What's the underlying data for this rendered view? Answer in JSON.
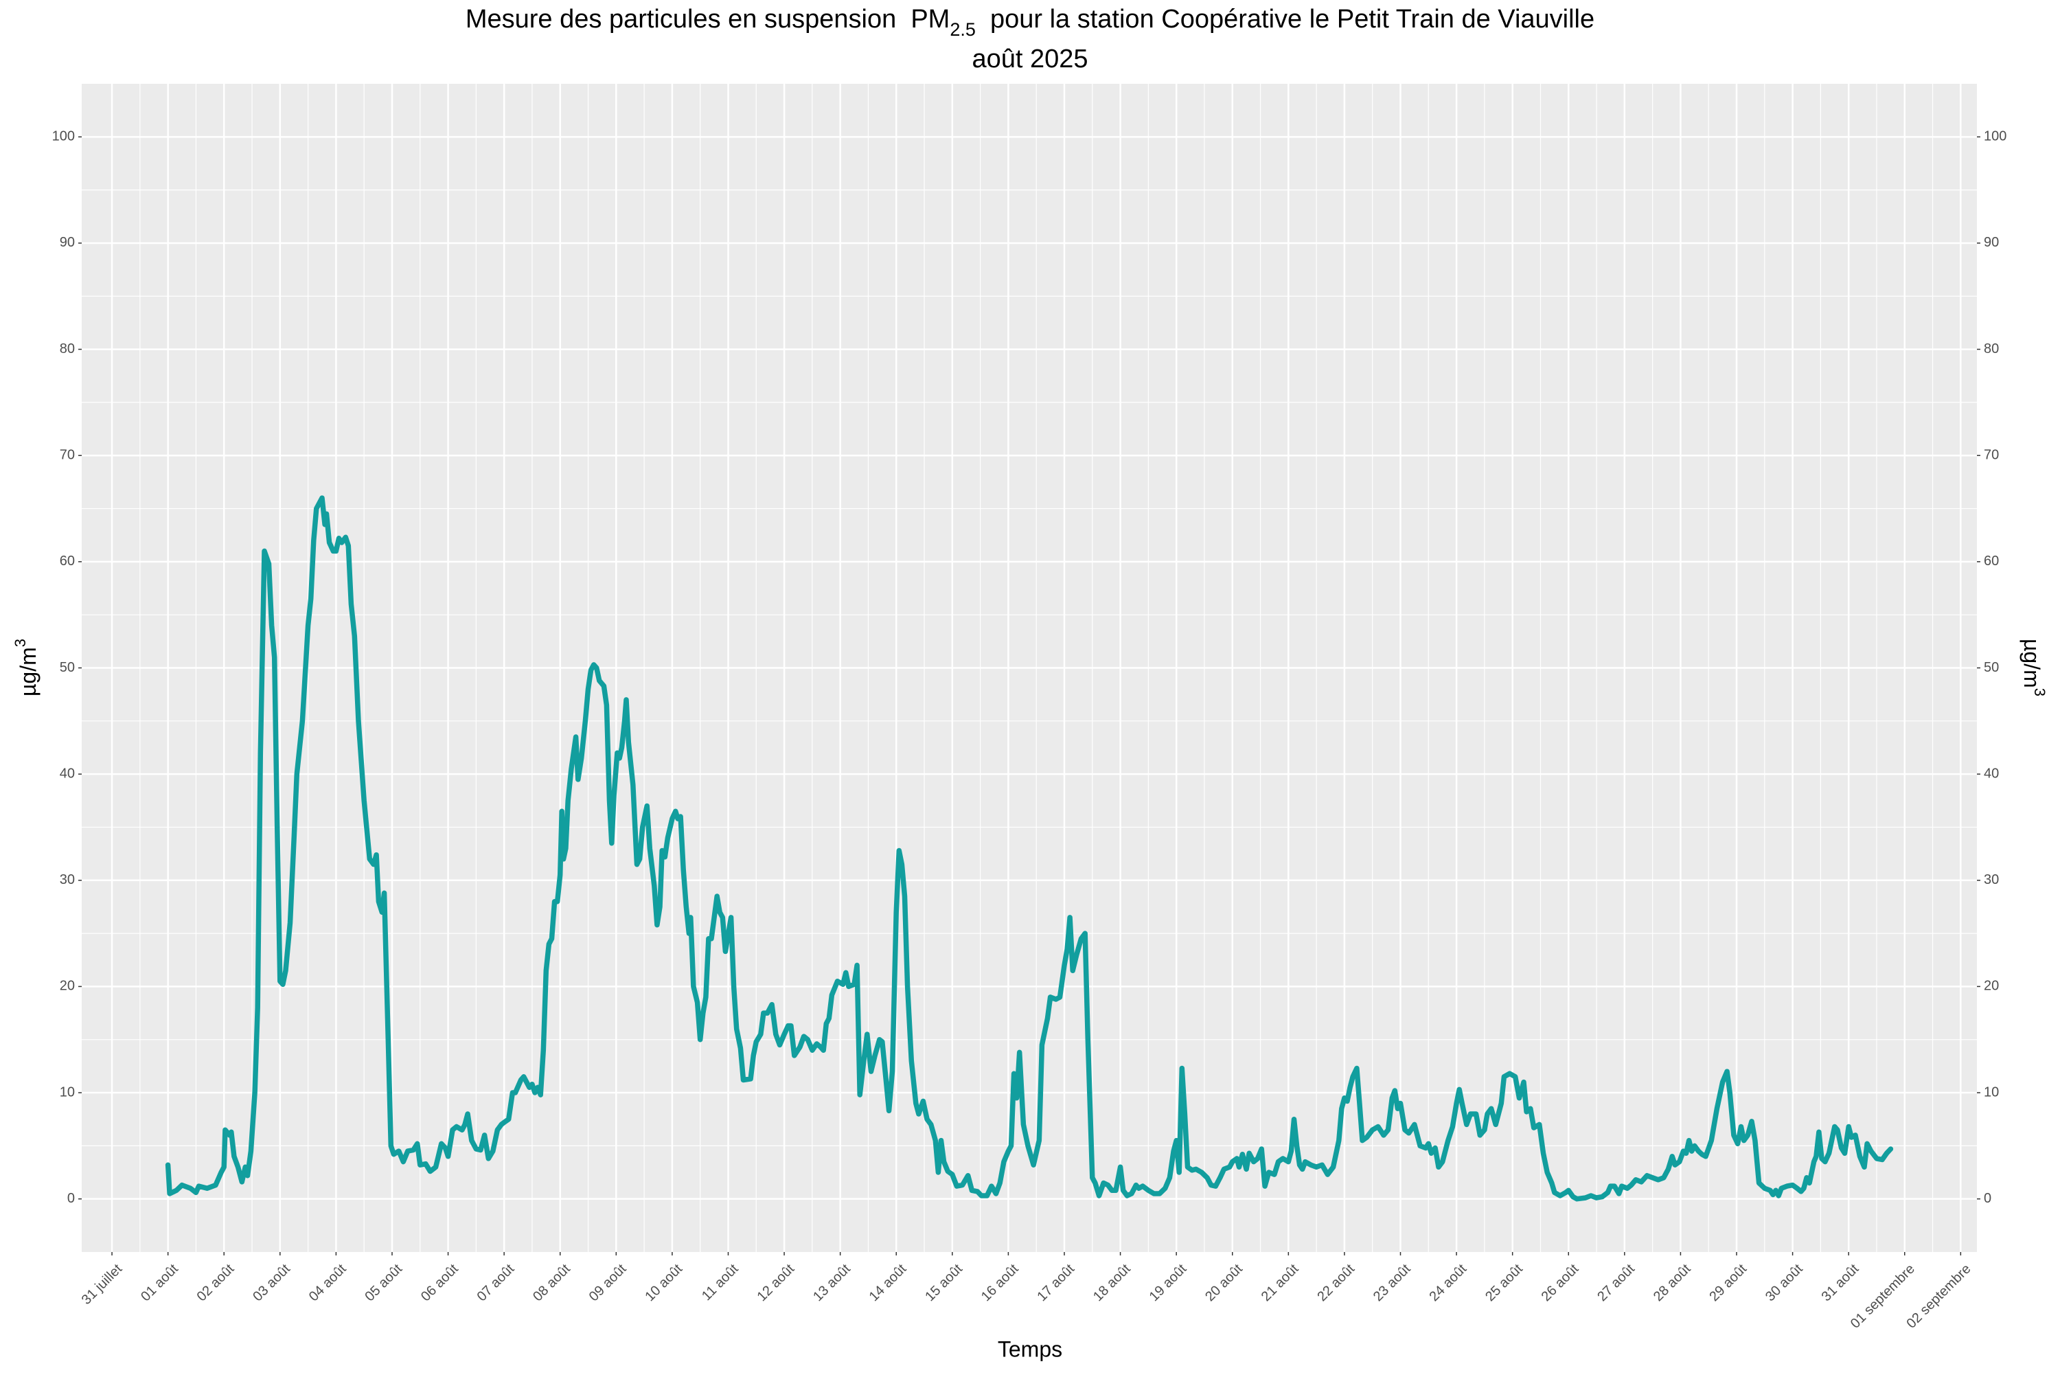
{
  "chart_data": {
    "type": "line",
    "title": [
      "Mesure des particules en suspension  ",
      "PM",
      "2.5",
      "  pour la station Coopérative le Petit Train de Viauville"
    ],
    "subtitle": "août 2025",
    "xlabel": "Temps",
    "ylabel": [
      "µg/m",
      "3"
    ],
    "color": "#129e9e",
    "grid": true,
    "xlim": [
      -0.54,
      33.29
    ],
    "ylim": [
      -5,
      105
    ],
    "yticks": [
      0,
      10,
      20,
      30,
      40,
      50,
      60,
      70,
      80,
      90,
      100
    ],
    "xticks": [
      {
        "value": 0,
        "label": "31 juillet"
      },
      {
        "value": 1,
        "label": "01 août"
      },
      {
        "value": 2,
        "label": "02 août"
      },
      {
        "value": 3,
        "label": "03 août"
      },
      {
        "value": 4,
        "label": "04 août"
      },
      {
        "value": 5,
        "label": "05 août"
      },
      {
        "value": 6,
        "label": "06 août"
      },
      {
        "value": 7,
        "label": "07 août"
      },
      {
        "value": 8,
        "label": "08 août"
      },
      {
        "value": 9,
        "label": "09 août"
      },
      {
        "value": 10,
        "label": "10 août"
      },
      {
        "value": 11,
        "label": "11 août"
      },
      {
        "value": 12,
        "label": "12 août"
      },
      {
        "value": 13,
        "label": "13 août"
      },
      {
        "value": 14,
        "label": "14 août"
      },
      {
        "value": 15,
        "label": "15 août"
      },
      {
        "value": 16,
        "label": "16 août"
      },
      {
        "value": 17,
        "label": "17 août"
      },
      {
        "value": 18,
        "label": "18 août"
      },
      {
        "value": 19,
        "label": "19 août"
      },
      {
        "value": 20,
        "label": "20 août"
      },
      {
        "value": 21,
        "label": "21 août"
      },
      {
        "value": 22,
        "label": "22 août"
      },
      {
        "value": 23,
        "label": "23 août"
      },
      {
        "value": 24,
        "label": "24 août"
      },
      {
        "value": 25,
        "label": "25 août"
      },
      {
        "value": 26,
        "label": "26 août"
      },
      {
        "value": 27,
        "label": "27 août"
      },
      {
        "value": 28,
        "label": "28 août"
      },
      {
        "value": 29,
        "label": "29 août"
      },
      {
        "value": 30,
        "label": "30 août"
      },
      {
        "value": 31,
        "label": "31 août"
      },
      {
        "value": 32,
        "label": "01 septembre"
      },
      {
        "value": 33,
        "label": "02 septembre"
      }
    ],
    "x": [
      1.0,
      1.03,
      1.15,
      1.25,
      1.4,
      1.5,
      1.55,
      1.7,
      1.85,
      1.95,
      2.0,
      2.02,
      2.1,
      2.13,
      2.18,
      2.25,
      2.32,
      2.38,
      2.42,
      2.48,
      2.55,
      2.6,
      2.65,
      2.72,
      2.8,
      2.85,
      2.9,
      2.95,
      3.0,
      3.05,
      3.1,
      3.18,
      3.25,
      3.3,
      3.4,
      3.5,
      3.55,
      3.6,
      3.65,
      3.75,
      3.8,
      3.83,
      3.88,
      3.95,
      4.0,
      4.05,
      4.1,
      4.17,
      4.22,
      4.27,
      4.33,
      4.4,
      4.5,
      4.6,
      4.67,
      4.72,
      4.76,
      4.82,
      4.86,
      4.93,
      4.98,
      5.03,
      5.12,
      5.2,
      5.28,
      5.38,
      5.45,
      5.5,
      5.6,
      5.68,
      5.78,
      5.88,
      5.95,
      6.0,
      6.08,
      6.15,
      6.25,
      6.3,
      6.35,
      6.42,
      6.5,
      6.58,
      6.65,
      6.72,
      6.8,
      6.88,
      6.95,
      7.0,
      7.08,
      7.15,
      7.2,
      7.3,
      7.35,
      7.45,
      7.5,
      7.55,
      7.6,
      7.65,
      7.7,
      7.75,
      7.8,
      7.85,
      7.9,
      7.95,
      8.0,
      8.03,
      8.06,
      8.1,
      8.14,
      8.2,
      8.28,
      8.32,
      8.38,
      8.45,
      8.5,
      8.55,
      8.6,
      8.65,
      8.7,
      8.78,
      8.83,
      8.88,
      8.92,
      8.96,
      9.02,
      9.06,
      9.1,
      9.15,
      9.18,
      9.22,
      9.3,
      9.37,
      9.42,
      9.47,
      9.55,
      9.6,
      9.68,
      9.73,
      9.78,
      9.82,
      9.87,
      9.92,
      10.0,
      10.06,
      10.1,
      10.15,
      10.2,
      10.25,
      10.3,
      10.33,
      10.38,
      10.45,
      10.5,
      10.55,
      10.6,
      10.65,
      10.7,
      10.75,
      10.8,
      10.85,
      10.9,
      10.95,
      11.05,
      11.1,
      11.15,
      11.22,
      11.27,
      11.4,
      11.45,
      11.5,
      11.58,
      11.63,
      11.7,
      11.78,
      11.85,
      11.92,
      12.0,
      12.07,
      12.12,
      12.18,
      12.28,
      12.35,
      12.42,
      12.5,
      12.58,
      12.65,
      12.7,
      12.75,
      12.8,
      12.85,
      12.95,
      13.05,
      13.1,
      13.15,
      13.25,
      13.3,
      13.35,
      13.42,
      13.48,
      13.55,
      13.62,
      13.7,
      13.75,
      13.82,
      13.87,
      13.93,
      14.0,
      14.05,
      14.1,
      14.15,
      14.2,
      14.27,
      14.35,
      14.4,
      14.48,
      14.55,
      14.62,
      14.7,
      14.75,
      14.8,
      14.85,
      14.92,
      15.0,
      15.08,
      15.18,
      15.28,
      15.35,
      15.45,
      15.52,
      15.62,
      15.7,
      15.78,
      15.85,
      15.92,
      16.0,
      16.05,
      16.1,
      16.15,
      16.2,
      16.27,
      16.35,
      16.45,
      16.55,
      16.6,
      16.7,
      16.75,
      16.85,
      16.92,
      17.0,
      17.05,
      17.1,
      17.15,
      17.22,
      17.3,
      17.37,
      17.42,
      17.5,
      17.55,
      17.62,
      17.7,
      17.78,
      17.85,
      17.92,
      18.0,
      18.05,
      18.12,
      18.2,
      18.28,
      18.33,
      18.4,
      18.5,
      18.6,
      18.7,
      18.8,
      18.88,
      18.95,
      19.0,
      19.05,
      19.1,
      19.15,
      19.2,
      19.28,
      19.35,
      19.45,
      19.55,
      19.62,
      19.7,
      19.78,
      19.85,
      19.95,
      20.0,
      20.08,
      20.12,
      20.18,
      20.25,
      20.3,
      20.38,
      20.45,
      20.52,
      20.58,
      20.65,
      20.75,
      20.82,
      20.9,
      21.0,
      21.05,
      21.1,
      21.15,
      21.2,
      21.25,
      21.3,
      21.4,
      21.5,
      21.6,
      21.7,
      21.8,
      21.9,
      21.95,
      22.0,
      22.05,
      22.1,
      22.15,
      22.22,
      22.27,
      22.32,
      22.4,
      22.5,
      22.6,
      22.7,
      22.78,
      22.85,
      22.9,
      22.95,
      23.0,
      23.08,
      23.15,
      23.25,
      23.3,
      23.35,
      23.45,
      23.5,
      23.55,
      23.62,
      23.68,
      23.75,
      23.85,
      23.93,
      24.0,
      24.05,
      24.1,
      24.18,
      24.25,
      24.35,
      24.42,
      24.5,
      24.55,
      24.62,
      24.7,
      24.8,
      24.85,
      24.95,
      25.05,
      25.12,
      25.2,
      25.25,
      25.32,
      25.38,
      25.48,
      25.55,
      25.62,
      25.7,
      25.75,
      25.85,
      25.95,
      26.0,
      26.08,
      26.15,
      26.3,
      26.4,
      26.5,
      26.6,
      26.7,
      26.75,
      26.82,
      26.9,
      26.95,
      27.05,
      27.12,
      27.2,
      27.3,
      27.4,
      27.5,
      27.6,
      27.7,
      27.78,
      27.85,
      27.9,
      27.98,
      28.05,
      28.1,
      28.15,
      28.2,
      28.25,
      28.32,
      28.38,
      28.45,
      28.55,
      28.65,
      28.75,
      28.83,
      28.88,
      28.95,
      29.02,
      29.08,
      29.13,
      29.2,
      29.27,
      29.33,
      29.4,
      29.5,
      29.6,
      29.65,
      29.7,
      29.75,
      29.8,
      29.9,
      30.0,
      30.08,
      30.15,
      30.2,
      30.25,
      30.3,
      30.38,
      30.42,
      30.47,
      30.52,
      30.58,
      30.65,
      30.75,
      30.8,
      30.87,
      30.93,
      31.0,
      31.05,
      31.12,
      31.2,
      31.28,
      31.33,
      31.4,
      31.5,
      31.6,
      31.68,
      31.75
    ],
    "values": [
      3.2,
      0.5,
      0.8,
      1.3,
      1.0,
      0.6,
      1.2,
      1.0,
      1.3,
      2.5,
      3.0,
      6.5,
      6.0,
      6.3,
      4.0,
      3.0,
      1.6,
      3.0,
      2.2,
      4.5,
      10,
      18,
      42,
      61,
      59.8,
      54,
      51,
      35,
      20.5,
      20.2,
      21.5,
      26,
      34,
      40,
      45,
      54,
      56.5,
      62,
      65,
      66,
      63.5,
      64.5,
      61.8,
      61,
      61,
      62.2,
      61.8,
      62.3,
      61.5,
      56,
      53,
      45,
      37.5,
      32,
      31.5,
      32.4,
      28,
      27,
      28.8,
      15,
      5,
      4.2,
      4.5,
      3.5,
      4.5,
      4.6,
      5.2,
      3.2,
      3.3,
      2.6,
      3.0,
      5.2,
      4.8,
      4.0,
      6.5,
      6.8,
      6.5,
      7.0,
      8.0,
      5.5,
      4.7,
      4.6,
      6.0,
      3.8,
      4.5,
      6.5,
      7.0,
      7.2,
      7.5,
      10,
      10,
      11.2,
      11.5,
      10.5,
      10.8,
      10.0,
      10.5,
      9.8,
      14,
      21.5,
      24,
      24.5,
      28,
      28,
      30.5,
      36.5,
      32,
      33,
      37.5,
      40.5,
      43.5,
      39.5,
      41.5,
      45,
      48,
      49.8,
      50.3,
      50,
      48.8,
      48.3,
      46.5,
      37.5,
      33.5,
      38,
      42,
      41.5,
      42.5,
      45,
      47,
      43,
      39,
      31.5,
      32,
      35,
      37,
      33,
      29.5,
      25.8,
      27.5,
      32.8,
      32.2,
      34,
      35.8,
      36.5,
      35.8,
      36,
      31,
      27.5,
      25,
      26.5,
      20,
      18.5,
      15,
      17.5,
      19,
      24.5,
      24.5,
      26.5,
      28.5,
      27,
      26.5,
      23.3,
      26.5,
      20,
      16,
      14.2,
      11.2,
      11.3,
      13.5,
      14.8,
      15.5,
      17.5,
      17.5,
      18.3,
      15.5,
      14.5,
      15.5,
      16.3,
      16.3,
      13.5,
      14.3,
      15.3,
      15,
      14,
      14.6,
      14.3,
      14,
      16.5,
      17,
      19.2,
      20.5,
      20.2,
      21.3,
      20,
      20.2,
      22,
      9.8,
      13,
      15.5,
      12,
      13.5,
      15,
      14.8,
      11,
      8.3,
      12,
      27,
      32.8,
      31.5,
      28.5,
      20,
      13,
      9,
      8,
      9.2,
      7.5,
      7,
      5.5,
      2.5,
      5.5,
      3.5,
      2.6,
      2.3,
      1.2,
      1.3,
      2.2,
      0.8,
      0.7,
      0.3,
      0.3,
      1.2,
      0.5,
      1.5,
      3.5,
      4.5,
      5,
      11.8,
      9.5,
      13.8,
      7,
      5,
      3.2,
      5.5,
      14.5,
      17,
      19,
      18.8,
      19,
      22,
      23.5,
      26.5,
      21.5,
      23,
      24.5,
      25,
      15,
      2,
      1.5,
      0.3,
      1.5,
      1.3,
      0.8,
      0.8,
      3,
      0.8,
      0.3,
      0.5,
      1.3,
      1.0,
      1.2,
      0.8,
      0.5,
      0.5,
      1.0,
      2.0,
      4.5,
      5.5,
      2.5,
      12.3,
      8,
      3,
      2.7,
      2.8,
      2.5,
      2,
      1.3,
      1.2,
      2.0,
      2.8,
      3.0,
      3.5,
      3.8,
      3.0,
      4.2,
      2.8,
      4.3,
      3.5,
      3.8,
      4.7,
      1.2,
      2.5,
      2.3,
      3.5,
      3.8,
      3.5,
      4.5,
      7.5,
      5,
      3.2,
      2.8,
      3.5,
      3.2,
      3.0,
      3.2,
      2.3,
      3,
      5.5,
      8.5,
      9.5,
      9.2,
      10.5,
      11.5,
      12.3,
      9,
      5.5,
      5.8,
      6.5,
      6.8,
      6.0,
      6.5,
      9.5,
      10.2,
      8.5,
      9.0,
      6.5,
      6.2,
      7,
      6,
      5,
      4.8,
      5.2,
      4.3,
      4.8,
      3,
      3.5,
      5.5,
      6.8,
      9,
      10.3,
      9,
      7,
      8,
      8,
      6,
      6.5,
      8,
      8.5,
      7,
      9,
      11.5,
      11.8,
      11.5,
      9.5,
      11,
      8.2,
      8.5,
      6.7,
      7,
      4.3,
      2.5,
      1.5,
      0.6,
      0.3,
      0.6,
      0.8,
      0.2,
      0,
      0.1,
      0.3,
      0.1,
      0.2,
      0.6,
      1.2,
      1.2,
      0.5,
      1.2,
      1.0,
      1.3,
      1.8,
      1.6,
      2.2,
      2.0,
      1.8,
      2.0,
      2.8,
      4,
      3.2,
      3.5,
      4.5,
      4.3,
      5.5,
      4.5,
      5,
      4.5,
      4.2,
      4,
      5.5,
      8.5,
      11,
      12,
      10,
      6,
      5.2,
      6.8,
      5.5,
      6,
      7.3,
      5.5,
      1.5,
      1.0,
      0.8,
      0.4,
      0.8,
      0.3,
      1.0,
      1.2,
      1.3,
      1.0,
      0.7,
      1.0,
      2.0,
      1.5,
      3.5,
      4,
      6.3,
      3.8,
      3.5,
      4.3,
      6.8,
      6.5,
      4.8,
      4.3,
      6.8,
      5.8,
      6,
      4,
      3,
      5.2,
      4.5,
      3.8,
      3.7,
      4.3,
      4.7
    ]
  }
}
